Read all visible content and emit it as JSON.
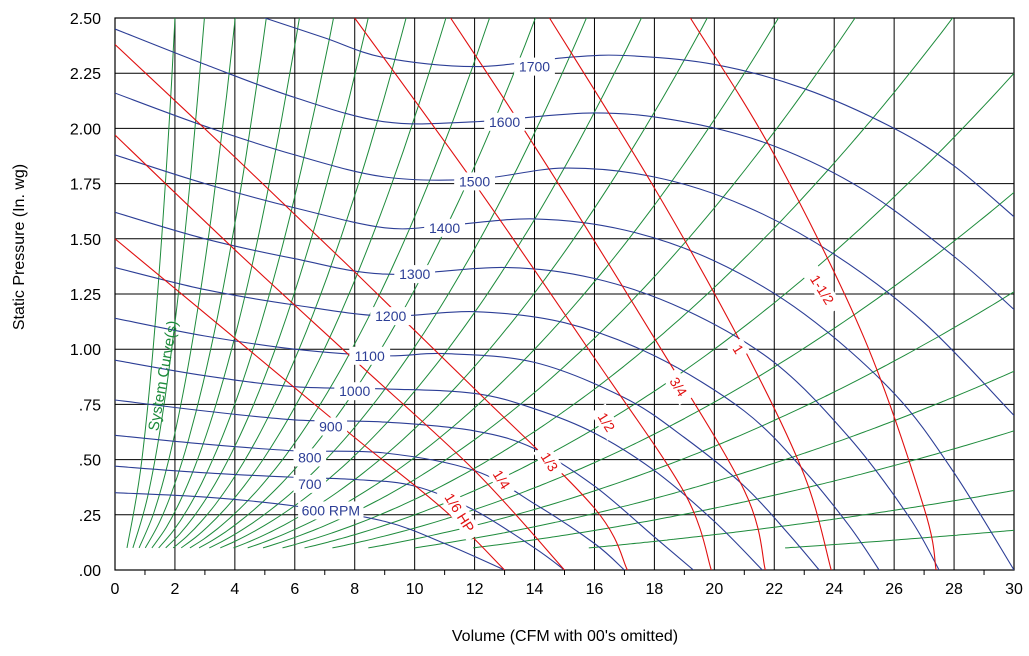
{
  "chart_data": {
    "type": "line",
    "xlabel": "Volume (CFM with 00's omitted)",
    "ylabel": "Static Pressure (In. wg)",
    "xlim": [
      0,
      30
    ],
    "ylim": [
      0,
      2.5
    ],
    "grid": true,
    "x_ticks": [
      "0",
      "2",
      "4",
      "6",
      "8",
      "10",
      "12",
      "14",
      "16",
      "18",
      "20",
      "22",
      "24",
      "26",
      "28",
      "30"
    ],
    "y_ticks": [
      ".00",
      ".25",
      ".50",
      ".75",
      "1.00",
      "1.25",
      "1.50",
      "1.75",
      "2.00",
      "2.25",
      "2.50"
    ],
    "colors": {
      "rpm": "#2c3e96",
      "hp": "#e01010",
      "system": "#1e8b3c",
      "grid": "#000000"
    },
    "rpm_series": [
      {
        "name": "600 RPM",
        "points": [
          [
            0,
            0.35
          ],
          [
            3,
            0.33
          ],
          [
            6,
            0.29
          ],
          [
            9,
            0.22
          ],
          [
            11,
            0.12
          ],
          [
            13,
            0.0
          ]
        ]
      },
      {
        "name": "700",
        "points": [
          [
            0,
            0.47
          ],
          [
            3,
            0.44
          ],
          [
            6,
            0.42
          ],
          [
            8,
            0.41
          ],
          [
            10,
            0.38
          ],
          [
            12,
            0.27
          ],
          [
            14,
            0.1
          ],
          [
            15,
            0.0
          ]
        ]
      },
      {
        "name": "800",
        "points": [
          [
            0,
            0.61
          ],
          [
            3,
            0.57
          ],
          [
            6,
            0.54
          ],
          [
            9,
            0.53
          ],
          [
            12,
            0.45
          ],
          [
            14,
            0.3
          ],
          [
            16,
            0.12
          ],
          [
            17,
            0.0
          ]
        ]
      },
      {
        "name": "900",
        "points": [
          [
            0,
            0.77
          ],
          [
            3,
            0.72
          ],
          [
            6,
            0.68
          ],
          [
            9,
            0.67
          ],
          [
            12,
            0.63
          ],
          [
            14,
            0.55
          ],
          [
            16,
            0.38
          ],
          [
            18,
            0.15
          ],
          [
            19.3,
            0.0
          ]
        ]
      },
      {
        "name": "1000",
        "points": [
          [
            0,
            0.95
          ],
          [
            3,
            0.88
          ],
          [
            6,
            0.83
          ],
          [
            9,
            0.82
          ],
          [
            12,
            0.8
          ],
          [
            14,
            0.73
          ],
          [
            16,
            0.62
          ],
          [
            18,
            0.45
          ],
          [
            20,
            0.22
          ],
          [
            21.6,
            0.0
          ]
        ]
      },
      {
        "name": "1100",
        "points": [
          [
            0,
            1.14
          ],
          [
            3,
            1.06
          ],
          [
            6,
            1.0
          ],
          [
            9,
            0.97
          ],
          [
            11,
            0.98
          ],
          [
            14,
            0.94
          ],
          [
            17,
            0.78
          ],
          [
            19,
            0.6
          ],
          [
            21,
            0.38
          ],
          [
            22.5,
            0.16
          ],
          [
            23.5,
            0.0
          ]
        ]
      },
      {
        "name": "1200",
        "points": [
          [
            0,
            1.37
          ],
          [
            3,
            1.27
          ],
          [
            6,
            1.2
          ],
          [
            9,
            1.15
          ],
          [
            12,
            1.17
          ],
          [
            15,
            1.12
          ],
          [
            18,
            0.97
          ],
          [
            21,
            0.72
          ],
          [
            23,
            0.45
          ],
          [
            24.5,
            0.2
          ],
          [
            25.5,
            0.0
          ]
        ]
      },
      {
        "name": "1300",
        "points": [
          [
            0,
            1.62
          ],
          [
            3,
            1.5
          ],
          [
            6,
            1.41
          ],
          [
            9,
            1.34
          ],
          [
            13,
            1.37
          ],
          [
            16,
            1.32
          ],
          [
            19,
            1.18
          ],
          [
            22,
            0.94
          ],
          [
            24.5,
            0.6
          ],
          [
            26.5,
            0.24
          ],
          [
            27.5,
            0.0
          ]
        ]
      },
      {
        "name": "1400",
        "points": [
          [
            0,
            1.88
          ],
          [
            3,
            1.75
          ],
          [
            6,
            1.64
          ],
          [
            9,
            1.55
          ],
          [
            11,
            1.56
          ],
          [
            14,
            1.59
          ],
          [
            17,
            1.54
          ],
          [
            20,
            1.4
          ],
          [
            23,
            1.16
          ],
          [
            26,
            0.8
          ],
          [
            28,
            0.44
          ],
          [
            30,
            0.0
          ]
        ]
      },
      {
        "name": "1500",
        "points": [
          [
            0,
            2.16
          ],
          [
            3,
            2.01
          ],
          [
            6,
            1.88
          ],
          [
            9,
            1.78
          ],
          [
            12,
            1.77
          ],
          [
            15,
            1.82
          ],
          [
            18,
            1.78
          ],
          [
            21,
            1.65
          ],
          [
            24,
            1.43
          ],
          [
            27,
            1.12
          ],
          [
            30,
            0.7
          ]
        ]
      },
      {
        "name": "1600",
        "points": [
          [
            0,
            2.45
          ],
          [
            3,
            2.29
          ],
          [
            6,
            2.14
          ],
          [
            9,
            2.03
          ],
          [
            12,
            2.03
          ],
          [
            16,
            2.07
          ],
          [
            19,
            2.03
          ],
          [
            22,
            1.92
          ],
          [
            25,
            1.72
          ],
          [
            28,
            1.42
          ],
          [
            30,
            1.18
          ]
        ]
      },
      {
        "name": "1700",
        "points": [
          [
            5,
            2.5
          ],
          [
            7,
            2.41
          ],
          [
            9,
            2.32
          ],
          [
            12,
            2.28
          ],
          [
            15,
            2.32
          ],
          [
            17,
            2.33
          ],
          [
            20,
            2.29
          ],
          [
            23,
            2.18
          ],
          [
            26,
            2.0
          ],
          [
            28,
            1.83
          ],
          [
            30,
            1.6
          ]
        ]
      }
    ],
    "rpm_labels": [
      {
        "text": "600 RPM",
        "x": 7.2,
        "y": 0.27
      },
      {
        "text": "700",
        "x": 6.5,
        "y": 0.39
      },
      {
        "text": "800",
        "x": 6.5,
        "y": 0.51
      },
      {
        "text": "900",
        "x": 7.2,
        "y": 0.65
      },
      {
        "text": "1000",
        "x": 8.0,
        "y": 0.81
      },
      {
        "text": "1100",
        "x": 8.5,
        "y": 0.97
      },
      {
        "text": "1200",
        "x": 9.2,
        "y": 1.15
      },
      {
        "text": "1300",
        "x": 10.0,
        "y": 1.34
      },
      {
        "text": "1400",
        "x": 11.0,
        "y": 1.55
      },
      {
        "text": "1500",
        "x": 12.0,
        "y": 1.76
      },
      {
        "text": "1600",
        "x": 13.0,
        "y": 2.03
      },
      {
        "text": "1700",
        "x": 14.0,
        "y": 2.28
      }
    ],
    "hp_series": [
      {
        "name": "1/6 HP",
        "points": [
          [
            0,
            1.5
          ],
          [
            4,
            1.05
          ],
          [
            8,
            0.6
          ],
          [
            11,
            0.27
          ],
          [
            13,
            0.0
          ]
        ]
      },
      {
        "name": "1/4",
        "points": [
          [
            0,
            1.97
          ],
          [
            4,
            1.45
          ],
          [
            8,
            0.95
          ],
          [
            12,
            0.45
          ],
          [
            15,
            0.0
          ]
        ]
      },
      {
        "name": "1/3",
        "points": [
          [
            0,
            2.38
          ],
          [
            4,
            1.87
          ],
          [
            8,
            1.35
          ],
          [
            12,
            0.82
          ],
          [
            16,
            0.28
          ],
          [
            17.1,
            0.0
          ]
        ]
      },
      {
        "name": "1/2",
        "points": [
          [
            8.0,
            2.5
          ],
          [
            12,
            1.75
          ],
          [
            16,
            0.96
          ],
          [
            19,
            0.35
          ],
          [
            19.9,
            0.0
          ]
        ]
      },
      {
        "name": "3/4",
        "points": [
          [
            11.2,
            2.5
          ],
          [
            14,
            1.92
          ],
          [
            18,
            1.05
          ],
          [
            21,
            0.36
          ],
          [
            21.7,
            0.0
          ]
        ]
      },
      {
        "name": "1",
        "points": [
          [
            14.5,
            2.5
          ],
          [
            18,
            1.73
          ],
          [
            21,
            1.0
          ],
          [
            23,
            0.43
          ],
          [
            23.9,
            0.0
          ]
        ]
      },
      {
        "name": "1-1/2",
        "points": [
          [
            19.2,
            2.5
          ],
          [
            22,
            1.88
          ],
          [
            25,
            1.05
          ],
          [
            27,
            0.28
          ],
          [
            27.4,
            0.0
          ]
        ]
      }
    ],
    "hp_labels": [
      {
        "text": "1/6 HP",
        "x": 11.5,
        "y": 0.26
      },
      {
        "text": "1/4",
        "x": 12.9,
        "y": 0.41
      },
      {
        "text": "1/3",
        "x": 14.5,
        "y": 0.49
      },
      {
        "text": "1/2",
        "x": 16.4,
        "y": 0.67
      },
      {
        "text": "3/4",
        "x": 18.8,
        "y": 0.83
      },
      {
        "text": "1",
        "x": 20.8,
        "y": 1.0
      },
      {
        "text": "1-1/2",
        "x": 23.6,
        "y": 1.27
      }
    ],
    "system_curves_k": [
      0.62,
      0.28,
      0.155,
      0.098,
      0.066,
      0.047,
      0.035,
      0.0265,
      0.0205,
      0.016,
      0.0127,
      0.0101,
      0.0081,
      0.0064,
      0.0051,
      0.0041,
      0.0032,
      0.0025,
      0.0019,
      0.0014,
      0.001,
      0.0007,
      0.0004,
      0.0002
    ],
    "system_label": "System Curve(s)"
  }
}
